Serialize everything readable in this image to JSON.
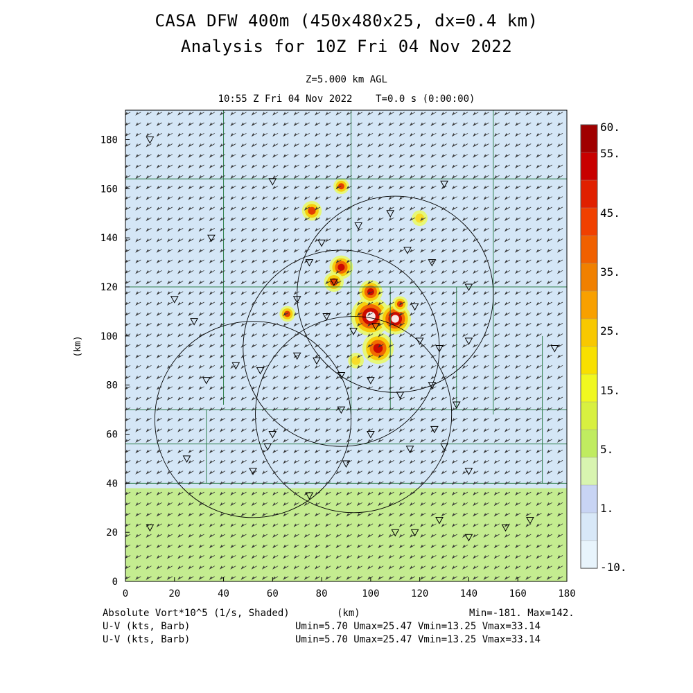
{
  "header": {
    "title_line1": "CASA DFW 400m (450x480x25, dx=0.4 km)",
    "title_line2": "Analysis for 10Z Fri 04 Nov 2022",
    "level": "Z=5.000 km AGL",
    "valid_time": "10:55 Z Fri 04 Nov 2022    T=0.0 s (0:00:00)"
  },
  "footer": {
    "field1": "Absolute Vort*10^5 (1/s, Shaded)",
    "xunit": "(km)",
    "minmax": "Min=-181. Max=142.",
    "field2": "U-V (kts, Barb)",
    "field2_stats": "Umin=5.70 Umax=25.47 Vmin=13.25 Vmax=33.14",
    "field3": "U-V (kts, Barb)",
    "field3_stats": "Umin=5.70 Umax=25.47 Vmin=13.25 Vmax=33.14"
  },
  "chart_data": {
    "type": "heatmap",
    "title": "Absolute Vort*10^5 (1/s, Shaded)",
    "xlabel": "(km)",
    "ylabel": "(km)",
    "xlim": [
      0,
      180
    ],
    "ylim": [
      0,
      192
    ],
    "x_ticks": [
      0,
      20,
      40,
      60,
      80,
      100,
      120,
      140,
      160,
      180
    ],
    "y_ticks": [
      0,
      20,
      40,
      60,
      80,
      100,
      120,
      140,
      160,
      180
    ],
    "colorbar": {
      "labels": [
        "60.",
        "55.",
        "45.",
        "35.",
        "25.",
        "15.",
        "5.",
        "1.",
        "-10."
      ],
      "colors": [
        "#a00000",
        "#c80000",
        "#e02000",
        "#f04000",
        "#f06000",
        "#f08000",
        "#f8a000",
        "#f8c800",
        "#f8e000",
        "#f0f820",
        "#d8f040",
        "#c0ec60",
        "#d8f4b0",
        "#c8d4f4",
        "#d8e8f8",
        "#e8f4fc"
      ]
    },
    "background_fields": {
      "north_color": "#d4e6f6",
      "south_color": "#c4ec90",
      "south_boundary_y_km": 38
    },
    "vorticity_cells": [
      {
        "x": 100,
        "y": 108,
        "r": 5,
        "level": "max"
      },
      {
        "x": 110,
        "y": 107,
        "r": 4,
        "level": "max"
      },
      {
        "x": 103,
        "y": 95,
        "r": 4,
        "level": "high"
      },
      {
        "x": 100,
        "y": 118,
        "r": 3,
        "level": "high"
      },
      {
        "x": 88,
        "y": 128,
        "r": 3,
        "level": "high"
      },
      {
        "x": 85,
        "y": 122,
        "r": 2.5,
        "level": "mid"
      },
      {
        "x": 76,
        "y": 151,
        "r": 2.5,
        "level": "mid"
      },
      {
        "x": 88,
        "y": 161,
        "r": 2,
        "level": "mid"
      },
      {
        "x": 66,
        "y": 109,
        "r": 2,
        "level": "mid"
      },
      {
        "x": 112,
        "y": 113,
        "r": 2,
        "level": "mid"
      },
      {
        "x": 94,
        "y": 90,
        "r": 2,
        "level": "low"
      },
      {
        "x": 120,
        "y": 148,
        "r": 2,
        "level": "low"
      }
    ],
    "radar_circles": [
      {
        "x": 110,
        "y": 117,
        "r": 40
      },
      {
        "x": 88,
        "y": 95,
        "r": 40
      },
      {
        "x": 52,
        "y": 66,
        "r": 40
      },
      {
        "x": 93,
        "y": 68,
        "r": 40
      }
    ],
    "wind_barbs": {
      "u_kts": [
        5.7,
        25.47
      ],
      "v_kts": [
        13.25,
        33.14
      ]
    }
  }
}
